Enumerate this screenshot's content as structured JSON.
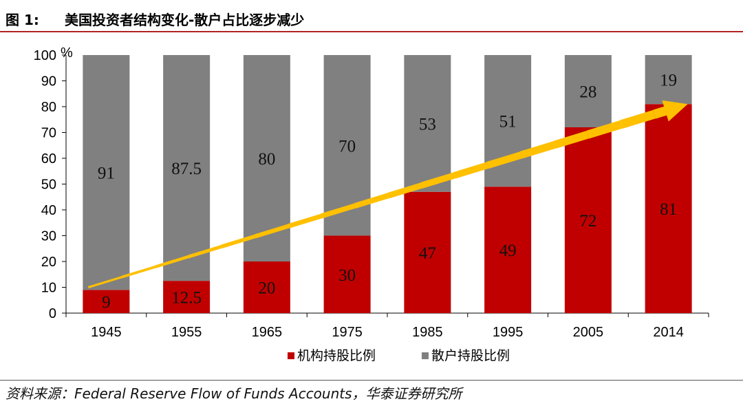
{
  "figure": {
    "label": "图 1:",
    "title": "美国投资者结构变化-散户占比逐步减少",
    "source": "资料来源：Federal Reserve Flow of Funds Accounts，华泰证券研究所"
  },
  "colors": {
    "institutional": "#c00000",
    "retail": "#808080",
    "arrow": "#ffc000",
    "title_rule": "#b22222"
  },
  "chart_data": {
    "type": "bar",
    "stacked": true,
    "categories": [
      "1945",
      "1955",
      "1965",
      "1975",
      "1985",
      "1995",
      "2005",
      "2014"
    ],
    "series": [
      {
        "name": "机构持股比例",
        "values": [
          9,
          12.5,
          20,
          30,
          47,
          49,
          72,
          81
        ],
        "color": "#c00000"
      },
      {
        "name": "散户持股比例",
        "values": [
          91,
          87.5,
          80,
          70,
          53,
          51,
          28,
          19
        ],
        "color": "#808080"
      }
    ],
    "y_ticks": [
      0,
      10,
      20,
      30,
      40,
      50,
      60,
      70,
      80,
      90,
      100
    ],
    "y_unit": "%",
    "ylim": [
      0,
      100
    ],
    "grid": false,
    "legend_position": "bottom",
    "annotation": {
      "type": "trend-arrow",
      "from": [
        "1945",
        10
      ],
      "to": [
        "2014",
        81
      ],
      "color": "#ffc000"
    }
  }
}
